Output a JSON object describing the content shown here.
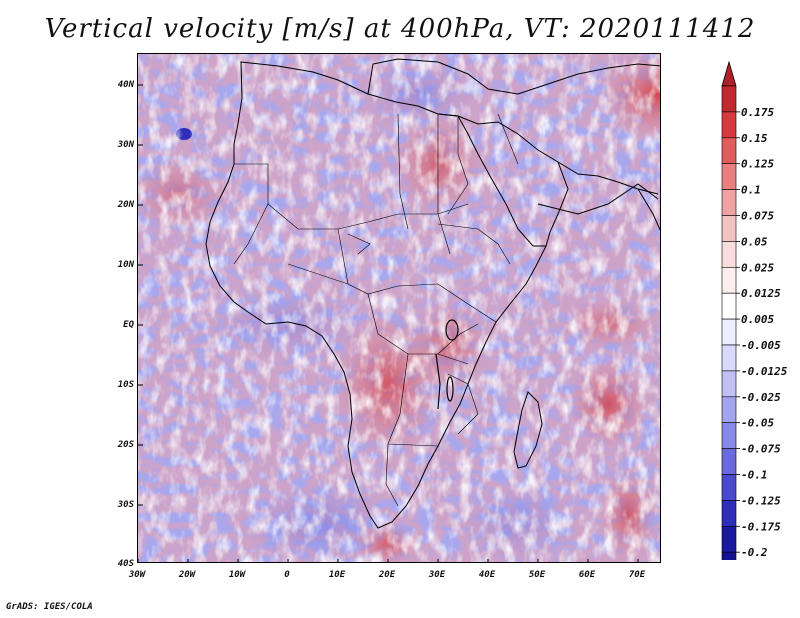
{
  "title": "Vertical velocity [m/s] at 400hPa, VT: 2020111412",
  "credit": "GrADS: IGES/COLA",
  "map": {
    "lon_ticks": [
      "30W",
      "20W",
      "10W",
      "0",
      "10E",
      "20E",
      "30E",
      "40E",
      "50E",
      "60E",
      "70E"
    ],
    "lat_ticks": [
      "40N",
      "30N",
      "20N",
      "10N",
      "EQ",
      "10S",
      "20S",
      "30S",
      "40S"
    ],
    "lon_range": [
      -30,
      75
    ],
    "lat_range": [
      -40,
      45
    ]
  },
  "legend": {
    "labels": [
      "0.175",
      "0.15",
      "0.125",
      "0.1",
      "0.075",
      "0.05",
      "0.025",
      "0.0125",
      "0.005",
      "-0.005",
      "-0.0125",
      "-0.025",
      "-0.05",
      "-0.075",
      "-0.1",
      "-0.125",
      "-0.175",
      "-0.2"
    ],
    "colors": [
      "#c2282f",
      "#d63a3f",
      "#e05d5d",
      "#e88080",
      "#efa2a2",
      "#f5c2c2",
      "#f9dcdc",
      "#fceeee",
      "#ffffff",
      "#eeeeff",
      "#d9d9fb",
      "#c0c0f5",
      "#a3a3ee",
      "#8888e6",
      "#6a6adc",
      "#4a4acc",
      "#2e2eb8",
      "#1a1aa0",
      "#121290"
    ],
    "top_arrow_color": "#b0202a",
    "bottom_arrow_color": "#1a1a8c"
  }
}
